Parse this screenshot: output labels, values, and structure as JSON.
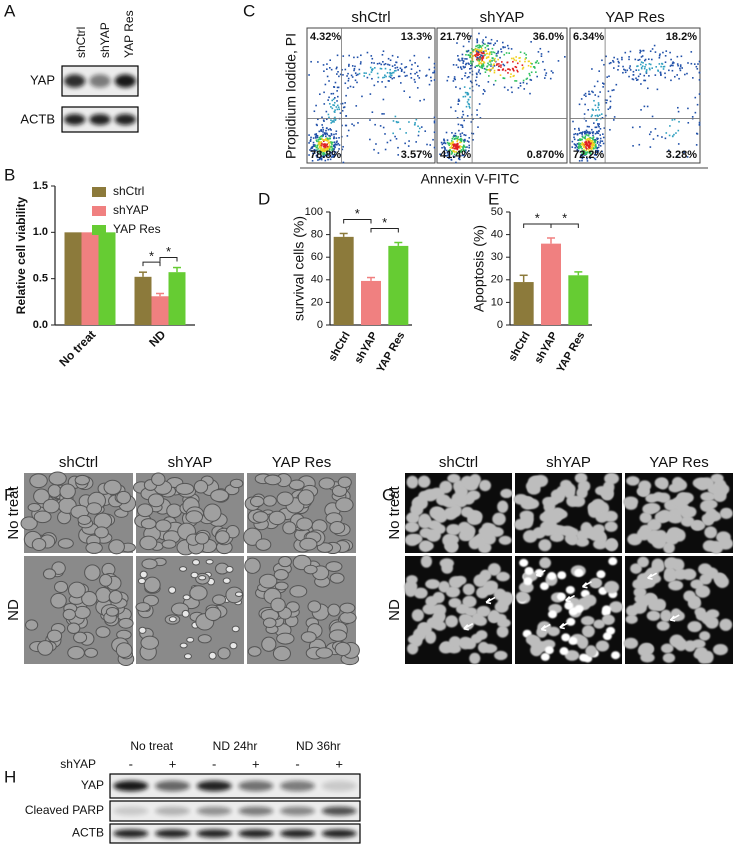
{
  "panel_labels": [
    "A",
    "B",
    "C",
    "D",
    "E",
    "F",
    "G",
    "H"
  ],
  "panel_a": {
    "columns": [
      "shCtrl",
      "shYAP",
      "YAP Res"
    ],
    "rows": [
      "YAP",
      "ACTB"
    ]
  },
  "panel_c": {
    "y_label": "Propidium Iodide, PI",
    "x_label": "Annexin V-FITC",
    "samples": [
      {
        "name": "shCtrl",
        "quadrants": [
          "4.32%",
          "13.3%",
          "78.8%",
          "3.57%"
        ]
      },
      {
        "name": "shYAP",
        "quadrants": [
          "21.7%",
          "36.0%",
          "41.4%",
          "0.870%"
        ]
      },
      {
        "name": "YAP Res",
        "quadrants": [
          "6.34%",
          "18.2%",
          "72.2%",
          "3.28%"
        ]
      }
    ]
  },
  "chart_data": [
    {
      "type": "bar",
      "ylabel": "Relative cell viability",
      "categories": [
        "No treat",
        "ND"
      ],
      "series": [
        {
          "name": "shCtrl",
          "color": "#8c7a3b",
          "values": [
            1.0,
            0.52
          ],
          "errors": [
            null,
            0.05
          ]
        },
        {
          "name": "shYAP",
          "color": "#f08080",
          "values": [
            1.0,
            0.31
          ],
          "errors": [
            null,
            0.03
          ]
        },
        {
          "name": "YAP Res",
          "color": "#66cc33",
          "values": [
            1.0,
            0.57
          ],
          "errors": [
            null,
            0.05
          ]
        }
      ],
      "ylim": [
        0,
        1.5
      ],
      "yticks": [
        {
          "value": 0,
          "label": "0.0"
        },
        0.5,
        {
          "value": 1,
          "label": "1.0"
        },
        1.5
      ],
      "annotations": [
        "*",
        "*"
      ]
    },
    {
      "type": "bar",
      "ylabel": "survival cells (%)",
      "categories": [
        "shCtrl",
        "shYAP",
        "YAP Res"
      ],
      "values": [
        78,
        39,
        70
      ],
      "errors": [
        3,
        3,
        3
      ],
      "colors": [
        "#8c7a3b",
        "#f08080",
        "#66cc33"
      ],
      "ylim": [
        0,
        100
      ],
      "yticks": [
        0,
        20,
        40,
        60,
        80,
        100
      ],
      "annotations": [
        "*",
        "*"
      ]
    },
    {
      "type": "bar",
      "ylabel": "Apoptosis (%)",
      "categories": [
        "shCtrl",
        "shYAP",
        "YAP Res"
      ],
      "values": [
        19,
        36,
        22
      ],
      "errors": [
        3,
        2.5,
        1.5
      ],
      "colors": [
        "#8c7a3b",
        "#f08080",
        "#66cc33"
      ],
      "ylim": [
        0,
        50
      ],
      "yticks": [
        0,
        10,
        20,
        30,
        40,
        50
      ],
      "annotations": [
        "*",
        "*"
      ]
    }
  ],
  "panel_f": {
    "columns": [
      "shCtrl",
      "shYAP",
      "YAP Res"
    ],
    "rows": [
      "No treat",
      "ND"
    ]
  },
  "panel_g": {
    "columns": [
      "shCtrl",
      "shYAP",
      "YAP Res"
    ],
    "rows": [
      "No treat",
      "ND"
    ]
  },
  "panel_h": {
    "groups": [
      "No treat",
      "ND 24hr",
      "ND 36hr"
    ],
    "treatment": "shYAP",
    "signs": [
      "-",
      "+",
      "-",
      "+",
      "-",
      "+"
    ],
    "rows": [
      "YAP",
      "Cleaved PARP",
      "ACTB"
    ]
  }
}
